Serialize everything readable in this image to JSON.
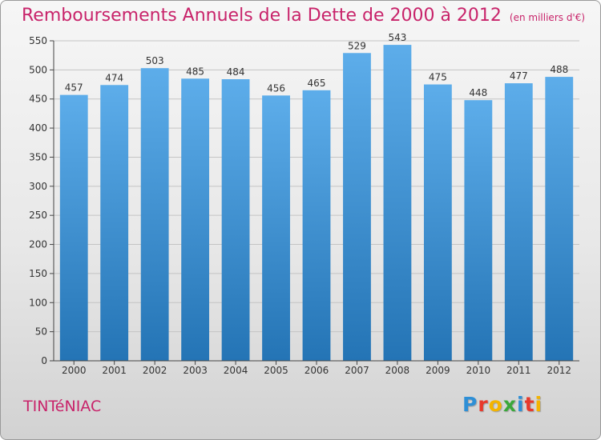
{
  "header": {
    "title": "Remboursements Annuels de la Dette de 2000 à 2012",
    "unit_note": "(en milliers d'€)"
  },
  "footer": {
    "commune": "TINTéNIAC",
    "brand_letters": [
      {
        "char": "P",
        "color": "#2e8fd6"
      },
      {
        "char": "r",
        "color": "#e8392b"
      },
      {
        "char": "o",
        "color": "#f4b400"
      },
      {
        "char": "x",
        "color": "#3aa83a"
      },
      {
        "char": "i",
        "color": "#2e8fd6"
      },
      {
        "char": "t",
        "color": "#e8392b"
      },
      {
        "char": "i",
        "color": "#f4b400"
      }
    ]
  },
  "colors": {
    "title": "#c8236a",
    "bar_top": "#5dadea",
    "bar_bottom": "#2474b5"
  },
  "chart_data": {
    "type": "bar",
    "title": "Remboursements Annuels de la Dette de 2000 à 2012",
    "subtitle": "(en milliers d'€)",
    "categories": [
      "2000",
      "2001",
      "2002",
      "2003",
      "2004",
      "2005",
      "2006",
      "2007",
      "2008",
      "2009",
      "2010",
      "2011",
      "2012"
    ],
    "values": [
      457,
      474,
      503,
      485,
      484,
      456,
      465,
      529,
      543,
      475,
      448,
      477,
      488
    ],
    "ylim": [
      0,
      550
    ],
    "yticks": [
      0,
      50,
      100,
      150,
      200,
      250,
      300,
      350,
      400,
      450,
      500,
      550
    ],
    "grid": true,
    "xlabel": "",
    "ylabel": ""
  }
}
